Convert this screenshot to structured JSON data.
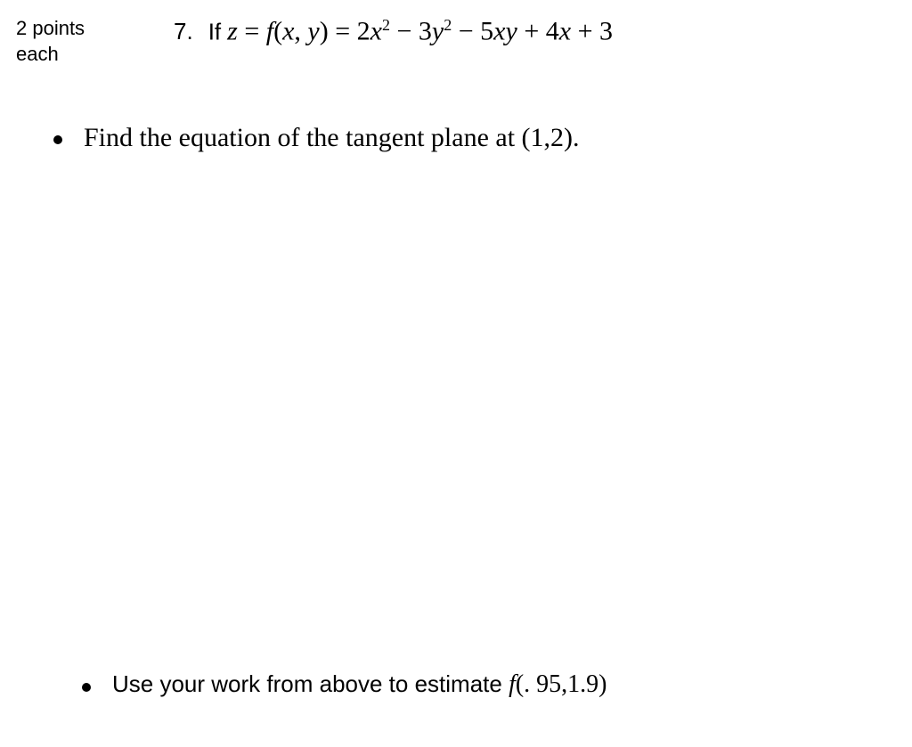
{
  "points": {
    "line1": "2 points",
    "line2": "each"
  },
  "question": {
    "number": "7.",
    "prefix": "If",
    "math_z": "z",
    "eq1": " = ",
    "math_f": "f",
    "paren_open": "(",
    "math_x": "x",
    "comma": ", ",
    "math_y": "y",
    "paren_close": ")",
    "eq2": " = ",
    "term1_coef": "2",
    "term1_var": "x",
    "term1_exp": "2",
    "minus1": " − ",
    "term2_coef": "3",
    "term2_var": "y",
    "term2_exp": "2",
    "minus2": " − ",
    "term3_coef": "5",
    "term3_var1": "x",
    "term3_var2": "y",
    "plus1": " + ",
    "term4_coef": "4",
    "term4_var": "x",
    "plus2": " + ",
    "term5": "3"
  },
  "bullet1": {
    "text_before": "Find the equation of the tangent plane at ",
    "point": "(1,2).",
    "point_open": "(1,2)."
  },
  "bullet2": {
    "text_comic": "Use your work from above to estimate ",
    "math_f": "f",
    "point": "(. 95,1.9)"
  }
}
